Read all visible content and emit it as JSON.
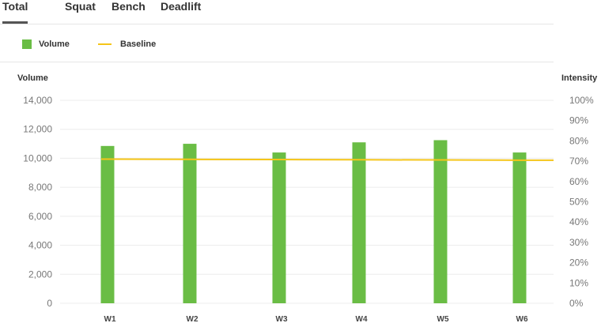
{
  "tabs": [
    {
      "label": "Total"
    },
    {
      "label": "Squat"
    },
    {
      "label": "Bench"
    },
    {
      "label": "Deadlift"
    }
  ],
  "active_tab": "Total",
  "colors": {
    "volume": "#6abd45",
    "baseline": "#f5c518",
    "grid": "#ececec"
  },
  "chart_data": {
    "type": "bar",
    "legend": [
      {
        "label": "Volume",
        "kind": "bar"
      },
      {
        "label": "Baseline",
        "kind": "line"
      }
    ],
    "legend_placement": "top-left",
    "categories": [
      "W1",
      "W2",
      "W3",
      "W4",
      "W5",
      "W6"
    ],
    "series": [
      {
        "name": "Volume",
        "type": "bar",
        "axis": "left",
        "values": [
          10850,
          11000,
          10400,
          11100,
          11250,
          10400
        ]
      },
      {
        "name": "Baseline",
        "type": "line",
        "axis": "right",
        "values": [
          71.0,
          70.9,
          70.8,
          70.7,
          70.6,
          70.5
        ]
      }
    ],
    "ylabel": "Volume",
    "ylabel_right": "Intensity",
    "ylim": [
      0,
      14000
    ],
    "ylim_right": [
      0,
      100
    ],
    "yticks": [
      "14,000",
      "12,000",
      "10,000",
      "8,000",
      "6,000",
      "4,000",
      "2,000",
      "0"
    ],
    "yticks_right": [
      "100%",
      "90%",
      "80%",
      "70%",
      "60%",
      "50%",
      "40%",
      "30%",
      "20%",
      "10%",
      "0%"
    ],
    "grid": true
  }
}
